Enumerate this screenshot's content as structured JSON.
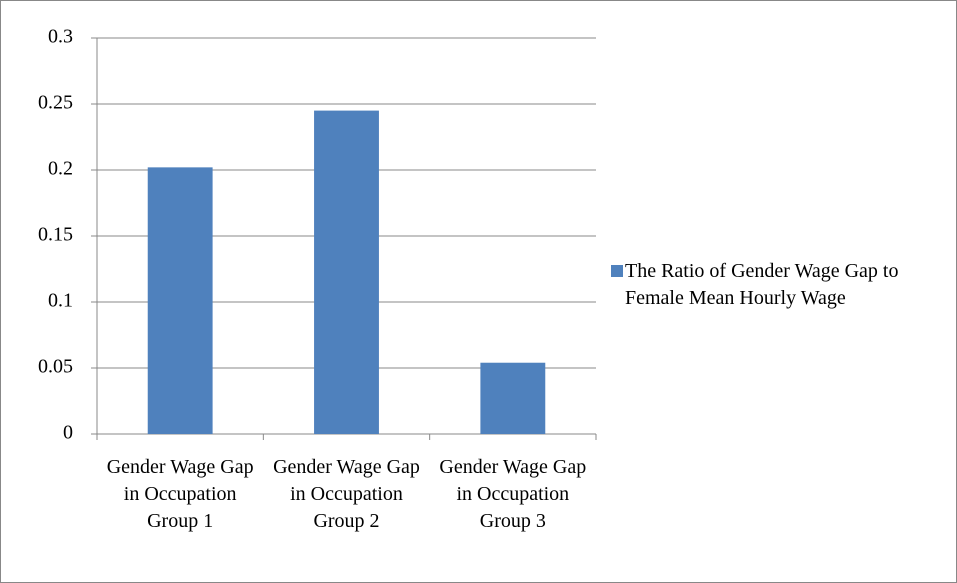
{
  "chart_data": {
    "type": "bar",
    "categories": [
      "Gender Wage Gap in Occupation Group 1",
      "Gender Wage Gap in Occupation Group 2",
      "Gender Wage Gap in Occupation Group 3"
    ],
    "series": [
      {
        "name": "The Ratio of Gender Wage Gap to Female Mean Hourly Wage",
        "color": "#4f81bd",
        "values": [
          0.202,
          0.245,
          0.054
        ]
      }
    ],
    "ylim": [
      0,
      0.3
    ],
    "yticks": [
      0,
      0.05,
      0.1,
      0.15,
      0.2,
      0.25,
      0.3
    ],
    "grid": true,
    "legend": "right"
  }
}
